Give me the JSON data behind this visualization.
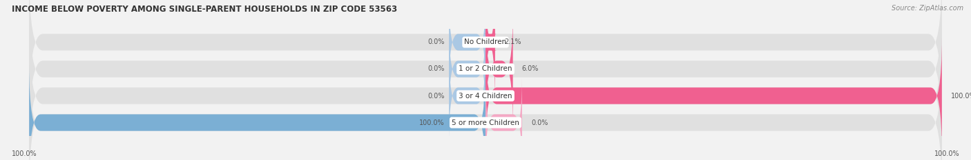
{
  "title": "INCOME BELOW POVERTY AMONG SINGLE-PARENT HOUSEHOLDS IN ZIP CODE 53563",
  "source": "Source: ZipAtlas.com",
  "categories": [
    "No Children",
    "1 or 2 Children",
    "3 or 4 Children",
    "5 or more Children"
  ],
  "single_father": [
    0.0,
    0.0,
    0.0,
    100.0
  ],
  "single_mother": [
    2.1,
    6.0,
    100.0,
    0.0
  ],
  "father_color": "#7bafd4",
  "mother_color": "#f06090",
  "father_color_light": "#aac8e4",
  "mother_color_light": "#f4a8c4",
  "bg_color": "#f2f2f2",
  "bar_bg_color": "#e0e0e0",
  "title_color": "#333333",
  "label_color": "#333333",
  "value_color": "#555555",
  "source_color": "#888888",
  "legend_color": "#555555",
  "max_value": 100.0,
  "figsize": [
    14.06,
    2.33
  ],
  "dpi": 100
}
